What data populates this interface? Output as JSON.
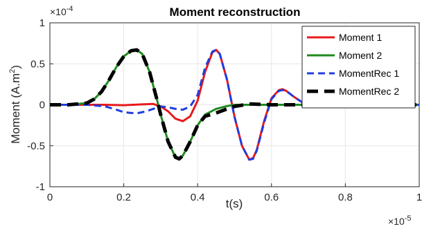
{
  "chart_data": {
    "type": "line",
    "title": "Moment reconstruction",
    "xlabel": "t(s)",
    "ylabel_base": "Moment (A.m",
    "ylabel_sup": "2",
    "ylabel_end": ")",
    "x_multiplier": {
      "base": "×10",
      "exp": "-5"
    },
    "y_multiplier": {
      "base": "×10",
      "exp": "-4"
    },
    "xlim": [
      0,
      1
    ],
    "ylim": [
      -1,
      1
    ],
    "xticks": [
      0,
      0.2,
      0.4,
      0.6,
      0.8,
      1
    ],
    "xtick_labels": [
      "0",
      "0.2",
      "0.4",
      "0.6",
      "0.8",
      "1"
    ],
    "yticks": [
      -1,
      -0.5,
      0,
      0.5,
      1
    ],
    "ytick_labels": [
      "-1",
      "-0.5",
      "0",
      "0.5",
      "1"
    ],
    "grid": true,
    "legend_position": "top-right",
    "series": [
      {
        "name": "Moment 1",
        "color": "#e8191b",
        "style": "solid",
        "x": [
          0,
          0.1,
          0.15,
          0.2,
          0.25,
          0.28,
          0.3,
          0.32,
          0.34,
          0.36,
          0.38,
          0.4,
          0.42,
          0.44,
          0.45,
          0.46,
          0.48,
          0.5,
          0.52,
          0.54,
          0.55,
          0.56,
          0.58,
          0.6,
          0.62,
          0.63,
          0.64,
          0.66,
          0.68,
          0.7,
          0.72,
          0.76,
          0.8,
          1.0
        ],
        "y": [
          0,
          0,
          0,
          -0.005,
          0.005,
          0.01,
          -0.02,
          -0.08,
          -0.17,
          -0.2,
          -0.14,
          0.05,
          0.4,
          0.64,
          0.67,
          0.62,
          0.3,
          -0.15,
          -0.5,
          -0.67,
          -0.65,
          -0.55,
          -0.2,
          0.08,
          0.18,
          0.19,
          0.17,
          0.1,
          0.04,
          0.0,
          -0.01,
          0.0,
          0.0,
          0.0
        ]
      },
      {
        "name": "Moment 2",
        "color": "#1f8a1f",
        "style": "solid",
        "x": [
          0,
          0.05,
          0.1,
          0.12,
          0.14,
          0.16,
          0.18,
          0.2,
          0.22,
          0.235,
          0.25,
          0.27,
          0.29,
          0.3,
          0.32,
          0.34,
          0.35,
          0.36,
          0.38,
          0.4,
          0.42,
          0.45,
          0.48,
          0.5,
          0.55,
          0.6,
          1.0
        ],
        "y": [
          0,
          0,
          0.02,
          0.07,
          0.16,
          0.3,
          0.46,
          0.59,
          0.66,
          0.67,
          0.62,
          0.4,
          0.06,
          -0.12,
          -0.45,
          -0.64,
          -0.66,
          -0.62,
          -0.45,
          -0.25,
          -0.12,
          -0.05,
          -0.015,
          0,
          0,
          0,
          0
        ]
      },
      {
        "name": "MomentRec 1",
        "color": "#1f3de0",
        "style": "dashed",
        "x": [
          0,
          0.1,
          0.15,
          0.18,
          0.2,
          0.22,
          0.24,
          0.26,
          0.28,
          0.3,
          0.32,
          0.34,
          0.36,
          0.38,
          0.4,
          0.42,
          0.44,
          0.45,
          0.46,
          0.48,
          0.5,
          0.52,
          0.54,
          0.55,
          0.56,
          0.58,
          0.6,
          0.62,
          0.63,
          0.64,
          0.66,
          0.68,
          0.7,
          0.72,
          0.76,
          0.8,
          1.0
        ],
        "y": [
          0,
          0,
          -0.02,
          -0.06,
          -0.09,
          -0.1,
          -0.1,
          -0.08,
          -0.05,
          -0.02,
          -0.03,
          -0.05,
          -0.06,
          -0.02,
          0.12,
          0.45,
          0.65,
          0.67,
          0.62,
          0.3,
          -0.15,
          -0.5,
          -0.67,
          -0.66,
          -0.56,
          -0.22,
          0.07,
          0.17,
          0.18,
          0.17,
          0.1,
          0.04,
          0.0,
          -0.01,
          0.0,
          0.0,
          0.0
        ]
      },
      {
        "name": "MomentRec 2",
        "color": "#000000",
        "style": "dashed",
        "x": [
          0,
          0.05,
          0.1,
          0.12,
          0.14,
          0.16,
          0.18,
          0.2,
          0.22,
          0.235,
          0.25,
          0.27,
          0.29,
          0.3,
          0.32,
          0.34,
          0.35,
          0.36,
          0.38,
          0.4,
          0.42,
          0.45,
          0.48,
          0.5,
          0.54,
          0.6,
          1.0
        ],
        "y": [
          0,
          0,
          0.02,
          0.07,
          0.16,
          0.3,
          0.46,
          0.59,
          0.66,
          0.67,
          0.62,
          0.4,
          0.06,
          -0.12,
          -0.45,
          -0.64,
          -0.66,
          -0.62,
          -0.45,
          -0.25,
          -0.14,
          -0.1,
          -0.05,
          -0.02,
          0.01,
          0,
          0
        ]
      }
    ]
  }
}
